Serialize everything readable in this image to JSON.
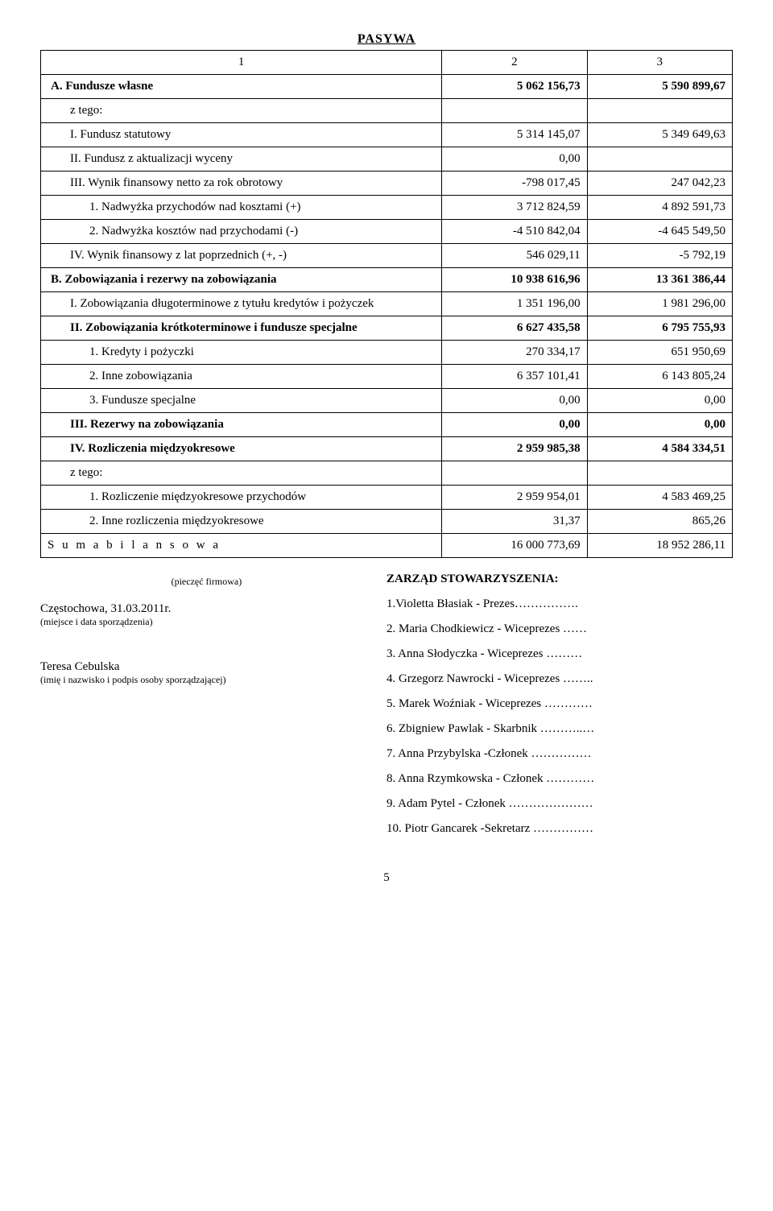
{
  "header": "PASYWA",
  "colhdr": {
    "c1": "1",
    "c2": "2",
    "c3": "3"
  },
  "rows": [
    {
      "lvl": 0,
      "bold": true,
      "label": "A. Fundusze własne",
      "v1": "5 062 156,73",
      "v2": "5 590 899,67"
    },
    {
      "lvl": 1,
      "bold": false,
      "label": "z tego:",
      "v1": "",
      "v2": ""
    },
    {
      "lvl": 1,
      "bold": false,
      "label": "I. Fundusz statutowy",
      "v1": "5 314 145,07",
      "v2": "5 349 649,63"
    },
    {
      "lvl": 1,
      "bold": false,
      "label": "II. Fundusz z aktualizacji wyceny",
      "v1": "0,00",
      "v2": ""
    },
    {
      "lvl": 1,
      "bold": false,
      "label": "III. Wynik finansowy netto za rok obrotowy",
      "v1": "-798 017,45",
      "v2": "247 042,23"
    },
    {
      "lvl": 2,
      "bold": false,
      "label": "1. Nadwyżka przychodów nad kosztami (+)",
      "v1": "3 712 824,59",
      "v2": "4 892 591,73"
    },
    {
      "lvl": 2,
      "bold": false,
      "label": "2. Nadwyżka kosztów nad przychodami (-)",
      "v1": "-4 510 842,04",
      "v2": "-4 645 549,50"
    },
    {
      "lvl": 1,
      "bold": false,
      "label": "IV. Wynik finansowy z lat poprzednich (+, -)",
      "v1": "546 029,11",
      "v2": "-5 792,19"
    },
    {
      "lvl": 0,
      "bold": true,
      "label": "B.  Zobowiązania i rezerwy na zobowiązania",
      "v1": "10 938 616,96",
      "v2": "13 361 386,44"
    },
    {
      "lvl": 1,
      "bold": false,
      "label": "I. Zobowiązania długoterminowe z tytułu kredytów i pożyczek",
      "v1": "1 351 196,00",
      "v2": "1 981 296,00"
    },
    {
      "lvl": 1,
      "bold": true,
      "label": "II. Zobowiązania krótkoterminowe i fundusze specjalne",
      "v1": "6 627 435,58",
      "v2": "6 795 755,93"
    },
    {
      "lvl": 2,
      "bold": false,
      "label": "1. Kredyty i pożyczki",
      "v1": "270 334,17",
      "v2": "651 950,69"
    },
    {
      "lvl": 2,
      "bold": false,
      "label": "2. Inne zobowiązania",
      "v1": "6 357 101,41",
      "v2": "6 143 805,24"
    },
    {
      "lvl": 2,
      "bold": false,
      "label": "3. Fundusze specjalne",
      "v1": "0,00",
      "v2": "0,00"
    },
    {
      "lvl": 1,
      "bold": true,
      "label": "III. Rezerwy na zobowiązania",
      "v1": "0,00",
      "v2": "0,00"
    },
    {
      "lvl": 1,
      "bold": true,
      "label": "IV. Rozliczenia międzyokresowe",
      "v1": "2 959 985,38",
      "v2": "4 584 334,51"
    },
    {
      "lvl": 1,
      "bold": false,
      "label": "z tego:",
      "v1": "",
      "v2": ""
    },
    {
      "lvl": 2,
      "bold": false,
      "label": "1. Rozliczenie międzyokresowe przychodów",
      "v1": "2 959 954,01",
      "v2": "4 583 469,25"
    },
    {
      "lvl": 2,
      "bold": false,
      "label": "2. Inne rozliczenia międzyokresowe",
      "v1": "31,37",
      "v2": "865,26"
    }
  ],
  "sum": {
    "label": "S u m a    b i l a n s o w a",
    "v1": "16 000 773,69",
    "v2": "18 952 286,11"
  },
  "footer": {
    "stamp": "(pieczęć firmowa)",
    "place_date": "Częstochowa, 31.03.2011r.",
    "place_note": "(miejsce i data sporządzenia)",
    "preparer": "Teresa Cebulska",
    "preparer_note": "(imię i nazwisko i podpis osoby sporządzającej)",
    "board_heading": "ZARZĄD  STOWARZYSZENIA:",
    "board": [
      "1.Violetta Błasiak - Prezes…………….",
      "2. Maria Chodkiewicz - Wiceprezes ……",
      "3. Anna Słodyczka  - Wiceprezes ………",
      "4. Grzegorz Nawrocki - Wiceprezes ……..",
      "5. Marek Woźniak - Wiceprezes …………",
      "6. Zbigniew Pawlak  - Skarbnik ………..…",
      "7. Anna Przybylska -Członek ……………",
      "8. Anna Rzymkowska - Członek …………",
      "9. Adam Pytel - Członek …………………",
      "10. Piotr Gancarek -Sekretarz ……………"
    ]
  },
  "page_number": "5"
}
